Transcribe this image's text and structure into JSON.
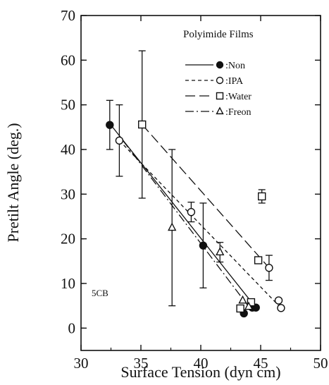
{
  "chart_data": {
    "type": "scatter",
    "xlabel": "Surface Tension (dyn cm)",
    "ylabel": "Pretilt Angle (deg.)",
    "xlim": [
      30,
      50
    ],
    "ylim": [
      -5,
      70
    ],
    "x_ticks": [
      30,
      35,
      40,
      45,
      50
    ],
    "y_ticks": [
      0,
      10,
      20,
      30,
      40,
      50,
      60,
      70
    ],
    "legend_title": "Polyimide Films",
    "legend_position": "top-right",
    "annotation": "5CB",
    "grid": false,
    "series": [
      {
        "name": ":Non",
        "marker": "filled-circle",
        "line": "solid",
        "points": [
          {
            "x": 32.4,
            "y": 45.5,
            "err": 5.5
          },
          {
            "x": 40.2,
            "y": 18.5,
            "err": 9.5
          },
          {
            "x": 43.6,
            "y": 3.3,
            "err": 0
          },
          {
            "x": 44.3,
            "y": 4.6,
            "err": 0
          },
          {
            "x": 44.6,
            "y": 4.6,
            "err": 0
          }
        ],
        "fit": [
          [
            32.4,
            45.8
          ],
          [
            44.6,
            4.6
          ]
        ]
      },
      {
        "name": ":IPA",
        "marker": "open-circle",
        "line": "dotted",
        "points": [
          {
            "x": 33.2,
            "y": 42.0,
            "err": 8.0
          },
          {
            "x": 39.2,
            "y": 26.0,
            "err": 2.2
          },
          {
            "x": 45.7,
            "y": 13.5,
            "err": 2.8
          },
          {
            "x": 46.5,
            "y": 6.2,
            "err": 0
          },
          {
            "x": 46.7,
            "y": 4.5,
            "err": 0
          }
        ],
        "fit": [
          [
            33.2,
            42.0
          ],
          [
            46.7,
            4.5
          ]
        ]
      },
      {
        "name": ":Water",
        "marker": "open-square",
        "line": "long-dash",
        "points": [
          {
            "x": 35.1,
            "y": 45.6,
            "err": 16.5
          },
          {
            "x": 45.1,
            "y": 29.5,
            "err": 1.5
          },
          {
            "x": 44.8,
            "y": 15.2,
            "err": 0
          },
          {
            "x": 44.2,
            "y": 5.8,
            "err": 0
          },
          {
            "x": 43.3,
            "y": 4.4,
            "err": 0
          }
        ],
        "fit": [
          [
            35.1,
            45.6
          ],
          [
            45.8,
            13.2
          ]
        ]
      },
      {
        "name": ":Freon",
        "marker": "open-triangle",
        "line": "dash-dot",
        "points": [
          {
            "x": 37.6,
            "y": 22.5,
            "err": 17.5
          },
          {
            "x": 41.6,
            "y": 17.0,
            "err": 2.2
          },
          {
            "x": 43.5,
            "y": 6.2,
            "err": 0
          },
          {
            "x": 44.0,
            "y": 4.8,
            "err": 0
          }
        ],
        "fit": [
          [
            33.5,
            42.0
          ],
          [
            44.0,
            4.8
          ]
        ]
      }
    ]
  }
}
